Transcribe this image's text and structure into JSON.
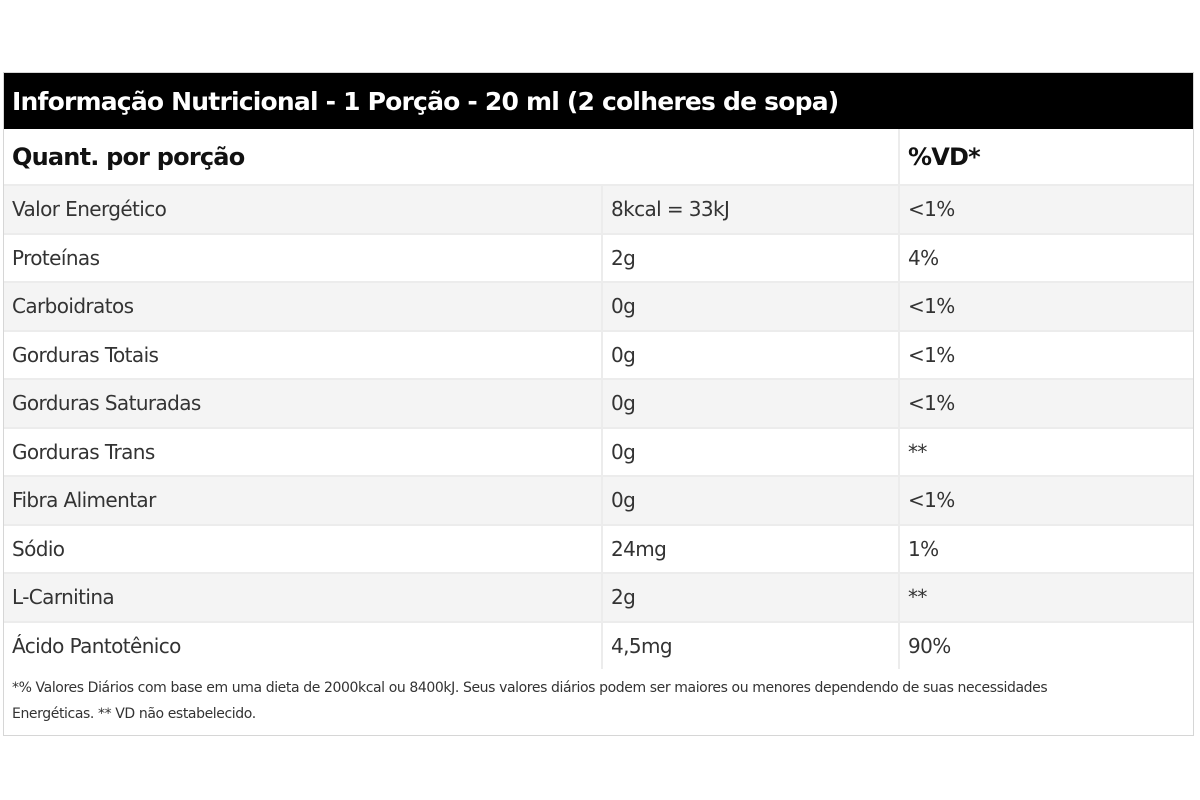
{
  "table": {
    "title": "Informação Nutricional - 1 Porção - 20 ml (2 colheres de sopa)",
    "header": {
      "quantity_label": "Quant. por porção",
      "vd_label": "%VD*"
    },
    "rows": [
      {
        "nutrient": "Valor Energético",
        "amount": "8kcal = 33kJ",
        "vd": "<1%"
      },
      {
        "nutrient": "Proteínas",
        "amount": "2g",
        "vd": "4%"
      },
      {
        "nutrient": "Carboidratos",
        "amount": "0g",
        "vd": "<1%"
      },
      {
        "nutrient": "Gorduras Totais",
        "amount": "0g",
        "vd": "<1%"
      },
      {
        "nutrient": "Gorduras Saturadas",
        "amount": "0g",
        "vd": "<1%"
      },
      {
        "nutrient": "Gorduras Trans",
        "amount": "0g",
        "vd": "**"
      },
      {
        "nutrient": "Fibra Alimentar",
        "amount": "0g",
        "vd": "<1%"
      },
      {
        "nutrient": "Sódio",
        "amount": "24mg",
        "vd": "1%"
      },
      {
        "nutrient": "L-Carnitina",
        "amount": "2g",
        "vd": "**"
      },
      {
        "nutrient": "Ácido Pantotênico",
        "amount": "4,5mg",
        "vd": "90%"
      }
    ],
    "footnote_line1": "*% Valores Diários com base em uma dieta de 2000kcal ou 8400kJ. Seus valores diários podem ser maiores ou menores dependendo de suas necessidades",
    "footnote_line2": "Energéticas. ** VD não estabelecido."
  }
}
